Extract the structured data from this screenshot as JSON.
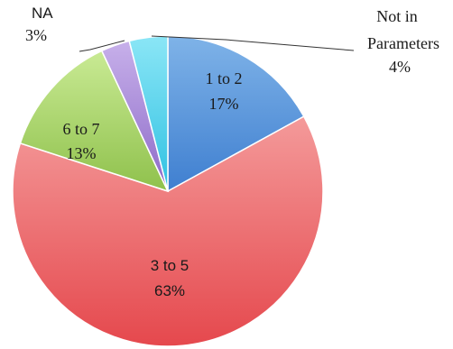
{
  "chart_data": {
    "type": "pie",
    "title": "",
    "slices": [
      {
        "label": "1 to 2",
        "percent_label": "17%",
        "value": 17,
        "color": "#5b9bd5"
      },
      {
        "label": "3 to 5",
        "percent_label": "63%",
        "value": 63,
        "color": "#ee5c5c"
      },
      {
        "label": "6 to 7",
        "percent_label": "13%",
        "value": 13,
        "color": "#a9d36b"
      },
      {
        "label": "NA",
        "percent_label": "3%",
        "value": 3,
        "color": "#a98bd8"
      },
      {
        "label": "Not in Parameters",
        "percent_label": "4%",
        "value": 4,
        "color": "#52d3ef"
      }
    ],
    "legend": "none"
  }
}
